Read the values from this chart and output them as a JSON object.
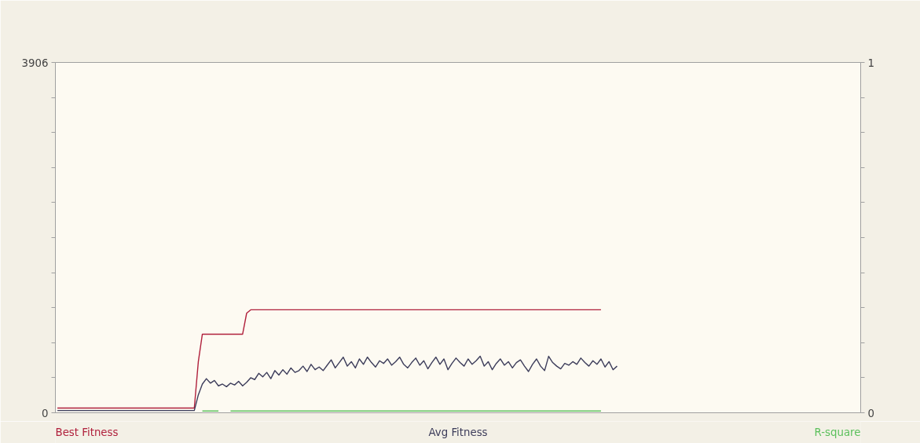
{
  "chart_data": {
    "type": "line",
    "categories": [
      null,
      null,
      null,
      null,
      null,
      null,
      null,
      null,
      null,
      null,
      null,
      null,
      null,
      null,
      null,
      null,
      null,
      null,
      null,
      null,
      null,
      null,
      null,
      null,
      null,
      null,
      null,
      null,
      null,
      null,
      null,
      null,
      null,
      null,
      null,
      null,
      null,
      null,
      null,
      null,
      null,
      null,
      null,
      null,
      null,
      null,
      null,
      null,
      null,
      null,
      null,
      null,
      null,
      null,
      null,
      null,
      null,
      null,
      null,
      null,
      null,
      null,
      null,
      null,
      null,
      null,
      null,
      null,
      null,
      null,
      null,
      null,
      null,
      null,
      null,
      null,
      null,
      null,
      null,
      null,
      null,
      null,
      null,
      null,
      null,
      null,
      null,
      null,
      null,
      null,
      null,
      null,
      null,
      null,
      null,
      null,
      null,
      null,
      null,
      null,
      null,
      null,
      null,
      null,
      null,
      null,
      null,
      null,
      null,
      null,
      null,
      null,
      null,
      null,
      null,
      null,
      null,
      null,
      null,
      null,
      null,
      null,
      null,
      null,
      null,
      null,
      null,
      null,
      null,
      null,
      null,
      null,
      null,
      null,
      null,
      null,
      null,
      null,
      null,
      null,
      null,
      null,
      null,
      null,
      null,
      null,
      null,
      null,
      null,
      null,
      null,
      null,
      null,
      null,
      null,
      null,
      null,
      null,
      null,
      null,
      null,
      null,
      null,
      null,
      null,
      null,
      null,
      null,
      null,
      null,
      null,
      null,
      null,
      null,
      null,
      null,
      null,
      null,
      null,
      null,
      null,
      null,
      null,
      null,
      null,
      null,
      null,
      null,
      null,
      null,
      null,
      null,
      null,
      null,
      null,
      null,
      null,
      null,
      null,
      null
    ],
    "series": [
      {
        "name": "Best Fitness",
        "color": "#b0203c",
        "values": [
          53,
          53,
          53,
          53,
          53,
          53,
          53,
          53,
          53,
          53,
          53,
          53,
          53,
          53,
          53,
          53,
          53,
          53,
          53,
          53,
          53,
          53,
          53,
          53,
          53,
          53,
          53,
          53,
          53,
          53,
          53,
          53,
          53,
          53,
          53,
          570,
          876,
          876,
          876,
          876,
          876,
          876,
          876,
          876,
          876,
          876,
          876,
          1110,
          1148,
          1148,
          1148,
          1148,
          1148,
          1148,
          1148,
          1148,
          1148,
          1148,
          1148,
          1148,
          1148,
          1148,
          1148,
          1148,
          1148,
          1148,
          1148,
          1148,
          1148,
          1148,
          1148,
          1148,
          1148,
          1148,
          1148,
          1148,
          1148,
          1148,
          1148,
          1148,
          1148,
          1148,
          1148,
          1148,
          1148,
          1148,
          1148,
          1148,
          1148,
          1148,
          1148,
          1148,
          1148,
          1148,
          1148,
          1148,
          1148,
          1148,
          1148,
          1148,
          1148,
          1148,
          1148,
          1148,
          1148,
          1148,
          1148,
          1148,
          1148,
          1148,
          1148,
          1148,
          1148,
          1148,
          1148,
          1148,
          1148,
          1148,
          1148,
          1148,
          1148,
          1148,
          1148,
          1148,
          1148,
          1148,
          1148,
          1148,
          1148,
          1148,
          1148,
          1148,
          1148,
          1148,
          1148,
          1148,
          null,
          null,
          null,
          null,
          null,
          null,
          null,
          null,
          null,
          null,
          null,
          null,
          null,
          null,
          null,
          null,
          null,
          null,
          null,
          null,
          null,
          null,
          null,
          null,
          null,
          null,
          null,
          null,
          null,
          null,
          null,
          null,
          null,
          null,
          null,
          null,
          null,
          null,
          null,
          null,
          null,
          null,
          null,
          null,
          null,
          null,
          null,
          null,
          null,
          null,
          null,
          null,
          null,
          null,
          null,
          null,
          null,
          null,
          null,
          null,
          null,
          null,
          null,
          null
        ]
      },
      {
        "name": "Avg Fitness",
        "color": "#3c3c5a",
        "values": [
          25,
          25,
          25,
          25,
          25,
          25,
          25,
          25,
          25,
          25,
          25,
          25,
          25,
          25,
          25,
          25,
          25,
          25,
          25,
          25,
          25,
          25,
          25,
          25,
          25,
          25,
          25,
          25,
          25,
          25,
          25,
          25,
          25,
          25,
          25,
          200,
          320,
          380,
          330,
          360,
          300,
          320,
          290,
          330,
          310,
          350,
          300,
          340,
          390,
          370,
          440,
          400,
          450,
          380,
          470,
          420,
          480,
          430,
          500,
          450,
          470,
          520,
          460,
          540,
          480,
          510,
          470,
          530,
          590,
          500,
          560,
          620,
          520,
          570,
          500,
          600,
          540,
          620,
          560,
          510,
          580,
          550,
          600,
          530,
          570,
          620,
          540,
          500,
          560,
          610,
          530,
          580,
          490,
          560,
          620,
          540,
          600,
          480,
          550,
          610,
          560,
          520,
          600,
          540,
          580,
          630,
          520,
          570,
          480,
          550,
          600,
          530,
          570,
          500,
          560,
          590,
          520,
          460,
          540,
          600,
          520,
          470,
          630,
          560,
          520,
          490,
          550,
          530,
          570,
          540,
          610,
          560,
          520,
          580,
          540,
          600,
          510,
          570,
          480,
          520,
          null,
          null,
          null,
          null,
          null,
          null,
          null,
          null,
          null,
          null,
          null,
          null,
          null,
          null,
          null,
          null,
          null,
          null,
          null,
          null,
          null,
          null,
          null,
          null,
          null,
          null,
          null,
          null,
          null,
          null,
          null,
          null,
          null,
          null,
          null,
          null,
          null,
          null,
          null,
          null,
          null,
          null,
          null,
          null,
          null,
          null,
          null,
          null,
          null,
          null,
          null,
          null,
          null,
          null,
          null,
          null,
          null,
          null,
          null,
          null
        ]
      },
      {
        "name": "R-square",
        "color": "#5cc05c",
        "axis": "y2",
        "values": [
          null,
          null,
          null,
          null,
          null,
          null,
          null,
          null,
          null,
          null,
          null,
          null,
          null,
          null,
          null,
          null,
          null,
          null,
          null,
          null,
          null,
          null,
          null,
          null,
          null,
          null,
          null,
          null,
          null,
          null,
          null,
          null,
          null,
          null,
          null,
          null,
          0.005,
          0.005,
          0.005,
          0.005,
          0.005,
          null,
          null,
          0.005,
          0.005,
          0.005,
          0.005,
          0.005,
          0.005,
          0.005,
          0.005,
          0.005,
          0.005,
          0.005,
          0.005,
          0.005,
          0.005,
          0.005,
          0.005,
          0.005,
          0.005,
          0.005,
          0.005,
          0.005,
          0.005,
          0.005,
          0.005,
          0.005,
          0.005,
          0.005,
          0.005,
          0.005,
          0.005,
          0.005,
          0.005,
          0.005,
          0.005,
          0.005,
          0.005,
          0.005,
          0.005,
          0.005,
          0.005,
          0.005,
          0.005,
          0.005,
          0.005,
          0.005,
          0.005,
          0.005,
          0.005,
          0.005,
          0.005,
          0.005,
          0.005,
          0.005,
          0.005,
          0.005,
          0.005,
          0.005,
          0.005,
          0.005,
          0.005,
          0.005,
          0.005,
          0.005,
          0.005,
          0.005,
          0.005,
          0.005,
          0.005,
          0.005,
          0.005,
          0.005,
          0.005,
          0.005,
          0.005,
          0.005,
          0.005,
          0.005,
          0.005,
          0.005,
          0.005,
          0.005,
          0.005,
          0.005,
          0.005,
          0.005,
          0.005,
          0.005,
          0.005,
          0.005,
          0.005,
          0.005,
          0.005,
          0.005,
          null,
          null,
          null,
          null,
          null,
          null,
          null,
          null,
          null,
          null,
          null,
          null,
          null,
          null,
          null,
          null,
          null,
          null,
          null,
          null,
          null,
          null,
          null,
          null,
          null,
          null,
          null,
          null,
          null,
          null,
          null,
          null,
          null,
          null,
          null,
          null,
          null,
          null,
          null,
          null,
          null,
          null,
          null,
          null,
          null,
          null,
          null,
          null,
          null,
          null,
          null,
          null,
          null,
          null,
          null,
          null,
          null,
          null,
          null,
          null,
          null,
          null,
          null,
          null
        ]
      }
    ],
    "ylim": [
      0,
      3906
    ],
    "yticks": [
      0,
      {
        "value": 390.6,
        "label": null
      },
      {
        "value": 781.2,
        "label": null
      },
      {
        "value": 1171.8,
        "label": null
      },
      {
        "value": 1562.4,
        "label": null
      },
      {
        "value": 1953,
        "label": null
      },
      {
        "value": 2343.6,
        "label": null
      },
      {
        "value": 2734.2,
        "label": null
      },
      {
        "value": 3124.8,
        "label": null
      },
      {
        "value": 3515.4,
        "label": null
      },
      3906
    ],
    "y2lim": [
      0,
      1
    ],
    "y2ticks": [
      0,
      {
        "value": 0.1,
        "label": null
      },
      {
        "value": 0.2,
        "label": null
      },
      {
        "value": 0.3,
        "label": null
      },
      {
        "value": 0.4,
        "label": null
      },
      {
        "value": 0.5,
        "label": null
      },
      {
        "value": 0.6,
        "label": null
      },
      {
        "value": 0.7,
        "label": null
      },
      {
        "value": 0.8,
        "label": null
      },
      {
        "value": 0.9,
        "label": null
      },
      1
    ],
    "legend": "bottom",
    "grid": false,
    "line_style": "solid"
  }
}
